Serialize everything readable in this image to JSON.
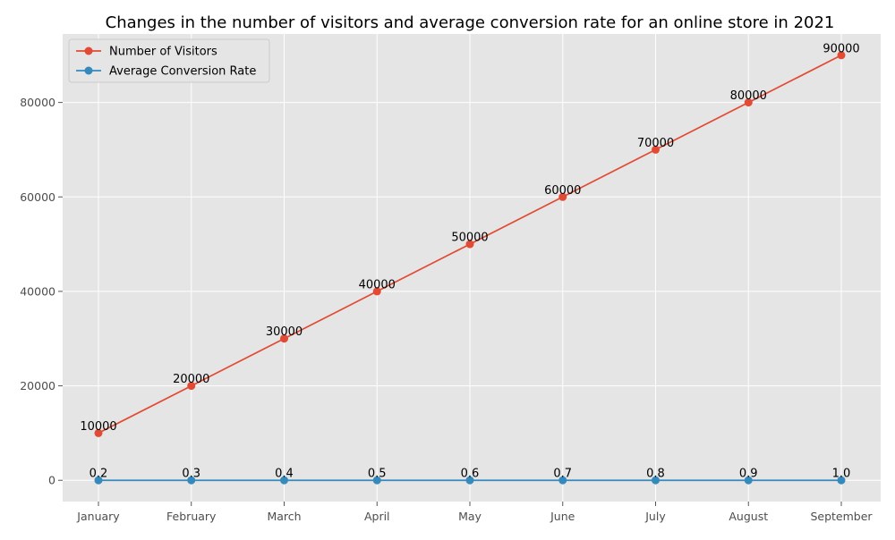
{
  "chart_data": {
    "type": "line",
    "title": "Changes in the number of visitors and average conversion rate for an online store in 2021",
    "xlabel": "",
    "ylabel": "",
    "categories": [
      "January",
      "February",
      "March",
      "April",
      "May",
      "June",
      "July",
      "August",
      "September"
    ],
    "series": [
      {
        "name": "Number of Visitors",
        "values": [
          10000,
          20000,
          30000,
          40000,
          50000,
          60000,
          70000,
          80000,
          90000
        ],
        "labels": [
          "10000",
          "20000",
          "30000",
          "40000",
          "50000",
          "60000",
          "70000",
          "80000",
          "90000"
        ],
        "color": "#E24A33"
      },
      {
        "name": "Average Conversion Rate",
        "values": [
          0.2,
          0.3,
          0.4,
          0.5,
          0.6,
          0.7,
          0.8,
          0.9,
          1.0
        ],
        "labels": [
          "0.2",
          "0.3",
          "0.4",
          "0.5",
          "0.6",
          "0.7",
          "0.8",
          "0.9",
          "1.0"
        ],
        "color": "#348ABD"
      }
    ],
    "yticks": [
      0,
      20000,
      40000,
      60000,
      80000
    ],
    "ylim": [
      -4500,
      94500
    ],
    "grid": true,
    "legend": "top-left",
    "background": "#E5E5E5",
    "grid_color": "#FFFFFF"
  }
}
